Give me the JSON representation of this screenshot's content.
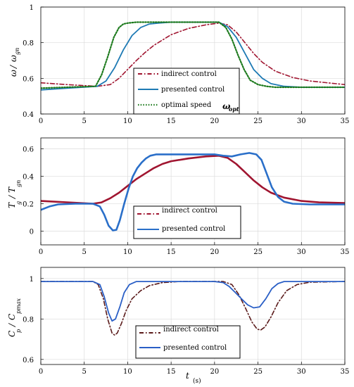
{
  "x_axis": {
    "label_t": "t",
    "label_unit": "(s)"
  },
  "chart_data": [
    {
      "type": "line",
      "ylabel_num": "ω",
      "ylabel_den": "ω",
      "ylabel_den_sub": "gn",
      "xlim": [
        0,
        35
      ],
      "ylim": [
        0.4,
        1.0
      ],
      "xticks": [
        0,
        5,
        10,
        15,
        20,
        25,
        30,
        35
      ],
      "yticks": [
        0.4,
        0.6,
        0.8,
        1
      ],
      "grid": true,
      "legend_position": "center-right",
      "annotation": {
        "text": "ω",
        "sub": "opt",
        "x": 30.2,
        "y": 0.44
      },
      "series": [
        {
          "name": "indirect control",
          "color": "#a01530",
          "style": "dashdot",
          "x": [
            0,
            3,
            6.5,
            8,
            9,
            10,
            11,
            12,
            13,
            14,
            15,
            17,
            19,
            20.5,
            21.5,
            22.5,
            23.5,
            24.5,
            25.5,
            27,
            29,
            31,
            33,
            35
          ],
          "y": [
            0.575,
            0.565,
            0.555,
            0.565,
            0.6,
            0.65,
            0.7,
            0.745,
            0.785,
            0.815,
            0.845,
            0.88,
            0.9,
            0.91,
            0.9,
            0.86,
            0.8,
            0.74,
            0.69,
            0.64,
            0.605,
            0.585,
            0.575,
            0.565
          ]
        },
        {
          "name": "presented control",
          "color": "#1e7ab4",
          "style": "solid",
          "x": [
            0,
            3,
            6.5,
            7.5,
            8.5,
            9.5,
            10.5,
            11.5,
            12.5,
            13.5,
            15,
            18,
            20.5,
            21.5,
            22.5,
            23.5,
            24.5,
            25.5,
            26.5,
            28,
            30,
            32,
            35
          ],
          "y": [
            0.535,
            0.545,
            0.555,
            0.585,
            0.66,
            0.76,
            0.84,
            0.885,
            0.905,
            0.91,
            0.915,
            0.915,
            0.915,
            0.89,
            0.83,
            0.74,
            0.65,
            0.6,
            0.57,
            0.555,
            0.55,
            0.55,
            0.55
          ]
        },
        {
          "name": "optimal speed",
          "color": "#1d7a1d",
          "style": "dotted",
          "x": [
            0,
            3,
            6.3,
            7,
            7.7,
            8.4,
            9,
            9.5,
            10,
            11,
            15,
            20.5,
            21.3,
            22,
            22.7,
            23.4,
            24.1,
            25,
            26,
            27,
            30,
            35
          ],
          "y": [
            0.545,
            0.55,
            0.555,
            0.62,
            0.72,
            0.83,
            0.885,
            0.905,
            0.91,
            0.915,
            0.915,
            0.915,
            0.885,
            0.82,
            0.73,
            0.65,
            0.59,
            0.565,
            0.555,
            0.55,
            0.55,
            0.55
          ]
        }
      ]
    },
    {
      "type": "line",
      "ylabel_T": "T",
      "ylabel_T_sub": "g",
      "ylabel_T2": "T",
      "ylabel_T2_sub": "gn",
      "xlim": [
        0,
        35
      ],
      "ylim": [
        -0.1,
        0.68
      ],
      "xticks": [
        0,
        5,
        10,
        15,
        20,
        25,
        30,
        35
      ],
      "yticks": [
        0,
        0.2,
        0.4,
        0.6
      ],
      "grid": true,
      "legend_position": "lower-right",
      "series": [
        {
          "name": "indirect control",
          "color": "#a01530",
          "style": "solid-thick",
          "x": [
            0,
            3,
            6,
            7,
            8,
            9,
            10,
            11,
            12,
            13,
            14,
            15,
            17,
            19,
            20.5,
            21.5,
            22.5,
            23.5,
            24.5,
            25.5,
            26.5,
            28,
            30,
            32,
            35
          ],
          "y": [
            0.22,
            0.21,
            0.2,
            0.21,
            0.24,
            0.28,
            0.33,
            0.38,
            0.42,
            0.46,
            0.49,
            0.51,
            0.53,
            0.545,
            0.55,
            0.535,
            0.49,
            0.43,
            0.37,
            0.32,
            0.28,
            0.245,
            0.22,
            0.21,
            0.205
          ]
        },
        {
          "name": "presented control",
          "color": "#2a6fc9",
          "style": "solid-thick",
          "x": [
            0,
            1,
            2,
            4,
            6,
            6.8,
            7.3,
            7.8,
            8.3,
            8.7,
            9.1,
            9.6,
            10.1,
            10.6,
            11.1,
            11.6,
            12.1,
            12.6,
            13.3,
            15,
            18,
            20,
            21,
            22,
            23,
            24,
            24.8,
            25.4,
            26,
            26.6,
            27.3,
            28,
            29,
            31,
            35
          ],
          "y": [
            0.155,
            0.18,
            0.195,
            0.2,
            0.2,
            0.18,
            0.12,
            0.04,
            0.005,
            0.01,
            0.08,
            0.2,
            0.31,
            0.4,
            0.46,
            0.5,
            0.53,
            0.55,
            0.56,
            0.56,
            0.56,
            0.56,
            0.55,
            0.545,
            0.56,
            0.57,
            0.56,
            0.52,
            0.42,
            0.32,
            0.25,
            0.215,
            0.2,
            0.195,
            0.195
          ]
        }
      ]
    },
    {
      "type": "line",
      "ylabel_C": "C",
      "ylabel_C_sub": "p",
      "ylabel_C2": "C",
      "ylabel_C2_sub": "pmax",
      "xlim": [
        0,
        35
      ],
      "ylim": [
        0.575,
        1.055
      ],
      "xticks": [
        0,
        5,
        10,
        15,
        20,
        25,
        30,
        35
      ],
      "yticks": [
        0.6,
        0.8,
        1
      ],
      "grid": true,
      "legend_position": "lower-right",
      "series": [
        {
          "name": "indirect control",
          "color": "#5a1a1a",
          "style": "dashdot",
          "x": [
            0,
            3,
            6,
            6.6,
            7.2,
            7.7,
            8.2,
            8.5,
            8.8,
            9.3,
            9.8,
            10.5,
            11.5,
            12.5,
            14,
            16,
            18,
            21,
            22,
            22.8,
            23.6,
            24.3,
            24.9,
            25.3,
            25.8,
            26.5,
            27.3,
            28.3,
            29.5,
            31,
            35
          ],
          "y": [
            0.985,
            0.985,
            0.985,
            0.97,
            0.9,
            0.8,
            0.73,
            0.72,
            0.73,
            0.78,
            0.84,
            0.9,
            0.94,
            0.965,
            0.98,
            0.985,
            0.985,
            0.985,
            0.97,
            0.92,
            0.85,
            0.785,
            0.75,
            0.745,
            0.76,
            0.81,
            0.88,
            0.94,
            0.97,
            0.982,
            0.985
          ]
        },
        {
          "name": "presented control",
          "color": "#2a5fc6",
          "style": "solid",
          "x": [
            0,
            3,
            6,
            6.8,
            7.3,
            7.8,
            8.2,
            8.6,
            9.1,
            9.6,
            10.2,
            11,
            12,
            15,
            20,
            21,
            21.7,
            22.4,
            23.1,
            23.8,
            24.5,
            25.2,
            25.9,
            26.6,
            27.3,
            28,
            30,
            35
          ],
          "y": [
            0.985,
            0.985,
            0.985,
            0.97,
            0.91,
            0.83,
            0.79,
            0.8,
            0.86,
            0.93,
            0.97,
            0.985,
            0.985,
            0.985,
            0.985,
            0.98,
            0.96,
            0.93,
            0.9,
            0.87,
            0.855,
            0.86,
            0.9,
            0.95,
            0.975,
            0.985,
            0.985,
            0.985
          ]
        }
      ]
    }
  ]
}
